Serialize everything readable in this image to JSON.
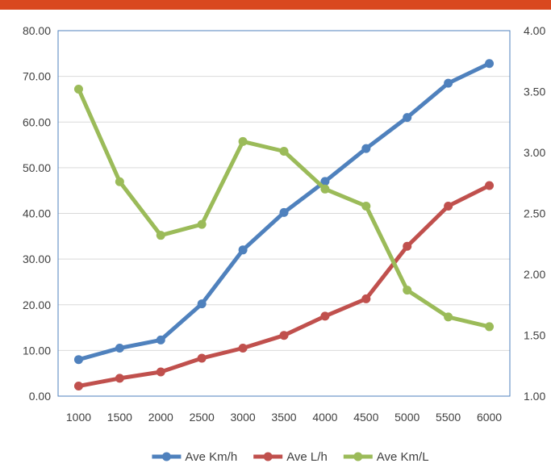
{
  "colors": {
    "top_bar": "#D9481F",
    "axis_frame": "#4F81BD",
    "gridline": "#D9D9D9",
    "tick_text": "#404040"
  },
  "chart_data": {
    "type": "line",
    "categories": [
      "1000",
      "1500",
      "2000",
      "2500",
      "3000",
      "3500",
      "4000",
      "4500",
      "5000",
      "5500",
      "6000"
    ],
    "left_axis": {
      "ylim": [
        0,
        80
      ],
      "ticks": [
        "0.00",
        "10.00",
        "20.00",
        "30.00",
        "40.00",
        "50.00",
        "60.00",
        "70.00",
        "80.00"
      ]
    },
    "right_axis": {
      "ylim": [
        1.0,
        4.0
      ],
      "ticks": [
        "1.00",
        "1.50",
        "2.00",
        "2.50",
        "3.00",
        "3.50",
        "4.00"
      ]
    },
    "grid": true,
    "legend_position": "bottom",
    "series": [
      {
        "name": "Ave Km/h",
        "axis": "left",
        "color": "#4F81BD",
        "values": [
          8.0,
          10.5,
          12.3,
          20.2,
          32.0,
          40.2,
          47.0,
          54.2,
          61.0,
          68.5,
          72.8
        ]
      },
      {
        "name": "Ave L/h",
        "axis": "left",
        "color": "#C0504D",
        "values": [
          2.2,
          3.9,
          5.3,
          8.3,
          10.5,
          13.3,
          17.5,
          21.3,
          32.8,
          41.6,
          46.1
        ]
      },
      {
        "name": "Ave Km/L",
        "axis": "right",
        "color": "#9BBB59",
        "values": [
          3.52,
          2.76,
          2.32,
          2.41,
          3.09,
          3.01,
          2.7,
          2.56,
          1.87,
          1.65,
          1.57
        ]
      }
    ]
  }
}
